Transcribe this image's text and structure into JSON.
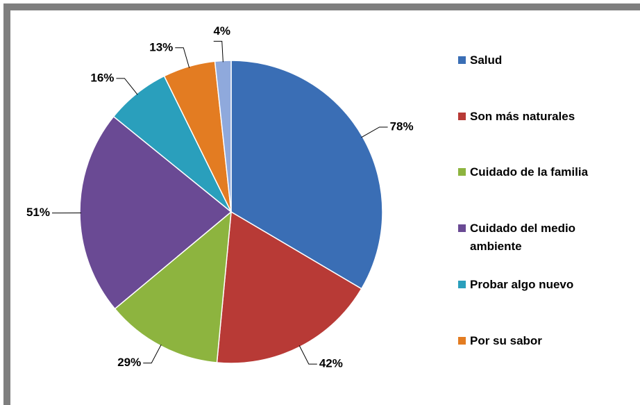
{
  "chart_data": {
    "type": "pie",
    "categories": [
      "Salud",
      "Son más naturales",
      "Cuidado de la familia",
      "Cuidado del medio ambiente",
      "Probar algo nuevo",
      "Por su sabor",
      null
    ],
    "values": [
      78,
      42,
      29,
      51,
      16,
      13,
      4
    ],
    "value_labels": [
      "78%",
      "42%",
      "29%",
      "51%",
      "16%",
      "13%",
      "4%"
    ],
    "colors": [
      "#3a6eb5",
      "#b83a36",
      "#8db43f",
      "#6a4a94",
      "#2a9fbc",
      "#e37c22",
      "#8fa9dc"
    ]
  }
}
